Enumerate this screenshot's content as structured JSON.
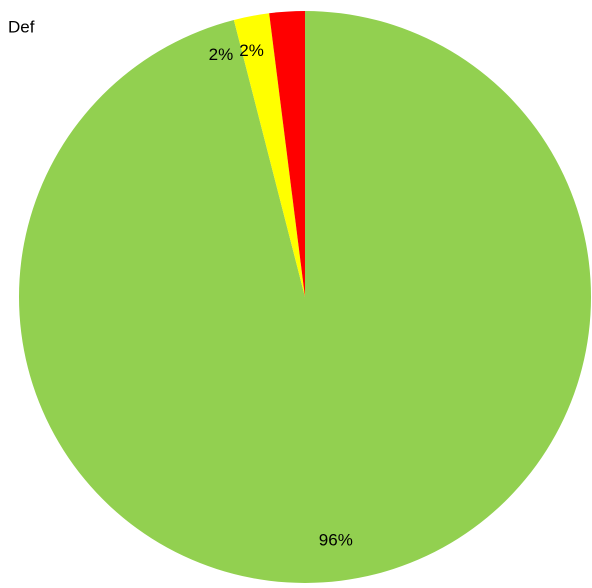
{
  "chart_data": {
    "type": "pie",
    "title": "Def",
    "values": [
      96,
      2,
      2
    ],
    "value_labels": [
      "96%",
      "2%",
      "2%"
    ],
    "colors": [
      "#92d050",
      "#ffff00",
      "#ff0000"
    ]
  }
}
